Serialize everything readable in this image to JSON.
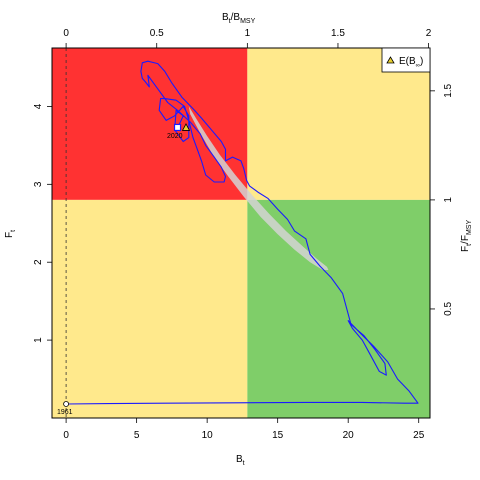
{
  "chart_data": {
    "type": "line",
    "title": "",
    "xlabel": "B",
    "xlabel_sub": "t",
    "ylabel": "F",
    "ylabel_sub": "t",
    "top_label_main": "B",
    "top_label_sub": "t",
    "top_label_mid": "/B",
    "top_label_sub2": "MSY",
    "right_label_main": "F",
    "right_label_sub": "t",
    "right_label_mid": "/F",
    "right_label_sub2": "MSY",
    "xlim": [
      -1,
      25.8
    ],
    "ylim": [
      0,
      4.75
    ],
    "x_ticks": [
      "0",
      "5",
      "10",
      "15",
      "20",
      "25"
    ],
    "x_tick_values": [
      0,
      5,
      10,
      15,
      20,
      25
    ],
    "y_ticks": [
      "1",
      "2",
      "3",
      "4"
    ],
    "y_tick_values": [
      1,
      2,
      3,
      4
    ],
    "top_ticks": [
      "0",
      "0.5",
      "1",
      "1.5",
      "2"
    ],
    "top_tick_values": [
      0,
      0.5,
      1,
      1.5,
      2
    ],
    "right_ticks": [
      "0.5",
      "1",
      "1.5"
    ],
    "right_tick_values": [
      0.5,
      1,
      1.5
    ],
    "bmsy": 12.85,
    "fmsy": 2.8,
    "quadrant_colors": {
      "red": "#ff3232",
      "yellow": "#ffe98c",
      "green": "#7fce69"
    },
    "line_color": "#1a1aff",
    "ellipse_color": "#d3d3d3",
    "ellipse_center": [
      13.3,
      2.85
    ],
    "start_label": "1961",
    "start_point": [
      0,
      0.18
    ],
    "end_label": "2020",
    "end_point": [
      7.9,
      3.73
    ],
    "expected_point": [
      8.5,
      3.73
    ],
    "legend": {
      "position": "top-right",
      "label_main": "E(B",
      "label_sub": "∞",
      "label_end": ")"
    },
    "trajectory": [
      [
        0.0,
        0.18
      ],
      [
        3.0,
        0.185
      ],
      [
        7.0,
        0.19
      ],
      [
        12.0,
        0.195
      ],
      [
        17.0,
        0.2
      ],
      [
        21.0,
        0.2
      ],
      [
        24.0,
        0.19
      ],
      [
        24.95,
        0.19
      ],
      [
        24.3,
        0.35
      ],
      [
        23.5,
        0.5
      ],
      [
        22.8,
        0.72
      ],
      [
        21.8,
        0.92
      ],
      [
        20.8,
        1.1
      ],
      [
        20.0,
        1.25
      ],
      [
        20.3,
        1.15
      ],
      [
        21.0,
        1.0
      ],
      [
        21.6,
        0.8
      ],
      [
        22.2,
        0.6
      ],
      [
        22.7,
        0.55
      ],
      [
        22.6,
        0.7
      ],
      [
        21.9,
        0.88
      ],
      [
        21.1,
        1.06
      ],
      [
        20.2,
        1.2
      ],
      [
        19.6,
        1.6
      ],
      [
        18.8,
        1.8
      ],
      [
        18.0,
        1.95
      ],
      [
        17.3,
        2.1
      ],
      [
        17.0,
        2.3
      ],
      [
        16.2,
        2.4
      ],
      [
        15.7,
        2.55
      ],
      [
        15.0,
        2.68
      ],
      [
        14.3,
        2.82
      ],
      [
        13.6,
        2.9
      ],
      [
        13.0,
        2.98
      ],
      [
        12.8,
        3.05
      ],
      [
        12.6,
        3.2
      ],
      [
        12.4,
        3.3
      ],
      [
        11.8,
        3.35
      ],
      [
        11.3,
        3.3
      ],
      [
        11.3,
        3.45
      ],
      [
        11.0,
        3.55
      ],
      [
        10.3,
        3.7
      ],
      [
        9.6,
        3.85
      ],
      [
        9.1,
        3.95
      ],
      [
        8.2,
        4.12
      ],
      [
        7.5,
        4.3
      ],
      [
        7.0,
        4.45
      ],
      [
        6.5,
        4.55
      ],
      [
        5.8,
        4.58
      ],
      [
        5.4,
        4.56
      ],
      [
        5.3,
        4.45
      ],
      [
        5.4,
        4.36
      ],
      [
        5.6,
        4.32
      ],
      [
        5.9,
        4.25
      ],
      [
        5.8,
        4.4
      ],
      [
        6.0,
        4.35
      ],
      [
        6.6,
        4.2
      ],
      [
        7.2,
        4.05
      ],
      [
        7.9,
        3.95
      ],
      [
        8.8,
        3.8
      ],
      [
        9.5,
        3.65
      ],
      [
        9.9,
        3.5
      ],
      [
        10.5,
        3.35
      ],
      [
        11.0,
        3.22
      ],
      [
        11.3,
        3.1
      ],
      [
        11.2,
        3.03
      ],
      [
        10.5,
        3.03
      ],
      [
        9.9,
        3.12
      ],
      [
        9.6,
        3.3
      ],
      [
        9.3,
        3.45
      ],
      [
        9.0,
        3.6
      ],
      [
        8.7,
        3.82
      ],
      [
        8.4,
        4.0
      ],
      [
        7.8,
        4.08
      ],
      [
        7.0,
        4.1
      ],
      [
        6.7,
        4.1
      ],
      [
        6.6,
        3.95
      ],
      [
        7.1,
        3.82
      ],
      [
        7.7,
        3.88
      ],
      [
        8.3,
        4.0
      ],
      [
        8.7,
        3.88
      ],
      [
        8.7,
        3.6
      ],
      [
        8.3,
        3.55
      ],
      [
        7.7,
        3.7
      ],
      [
        7.8,
        3.95
      ],
      [
        8.3,
        3.88
      ],
      [
        8.1,
        3.8
      ],
      [
        7.9,
        3.73
      ]
    ],
    "ellipse_points": [
      [
        8.7,
        4.0
      ],
      [
        9.3,
        3.82
      ],
      [
        10.0,
        3.62
      ],
      [
        10.9,
        3.38
      ],
      [
        12.0,
        3.12
      ],
      [
        13.2,
        2.86
      ],
      [
        14.4,
        2.62
      ],
      [
        15.6,
        2.4
      ],
      [
        16.8,
        2.2
      ],
      [
        17.8,
        2.04
      ],
      [
        18.5,
        1.94
      ],
      [
        18.6,
        1.9
      ],
      [
        18.2,
        1.9
      ],
      [
        17.3,
        2.0
      ],
      [
        16.2,
        2.16
      ],
      [
        15.0,
        2.36
      ],
      [
        13.8,
        2.58
      ],
      [
        12.6,
        2.84
      ],
      [
        11.5,
        3.1
      ],
      [
        10.4,
        3.38
      ],
      [
        9.5,
        3.66
      ],
      [
        8.8,
        3.9
      ]
    ]
  }
}
